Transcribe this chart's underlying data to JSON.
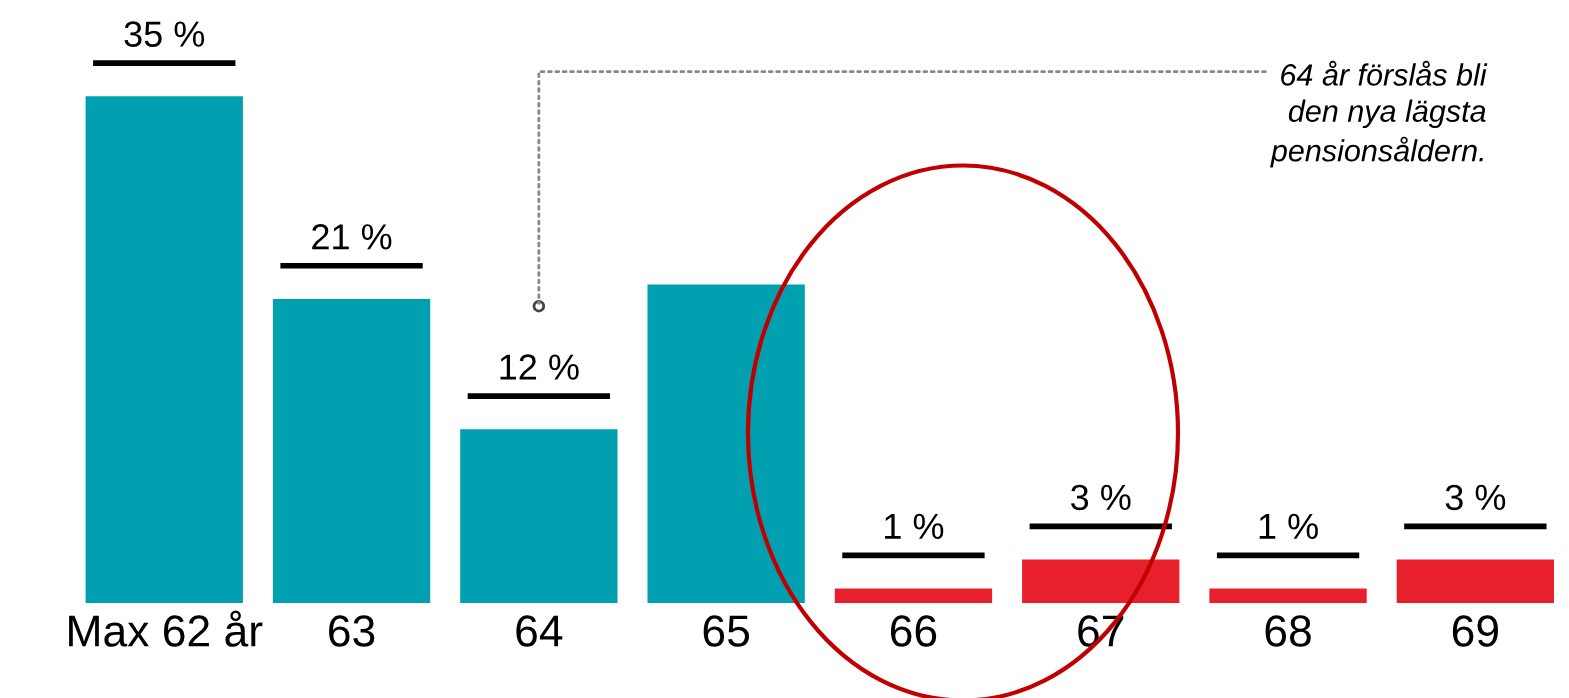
{
  "chart_data": {
    "type": "bar",
    "categories": [
      "Max 62 år",
      "63",
      "64",
      "65",
      "66",
      "67",
      "68",
      "69"
    ],
    "values": [
      35,
      21,
      12,
      22,
      1,
      3,
      1,
      3
    ],
    "colors": [
      "#00a0b0",
      "#00a0b0",
      "#00a0b0",
      "#00a0b0",
      "#e8202e",
      "#e8202e",
      "#e8202e",
      "#e8202e"
    ],
    "value_labels": [
      "35 %",
      "21 %",
      "12 %",
      null,
      "1 %",
      "3 %",
      "1 %",
      "3 %"
    ],
    "grid": false,
    "annotations": [
      {
        "text": "64 år förslås bli\nden nya lägsta\npensionsåldern.",
        "x": "64",
        "y": 20.5
      }
    ]
  }
}
